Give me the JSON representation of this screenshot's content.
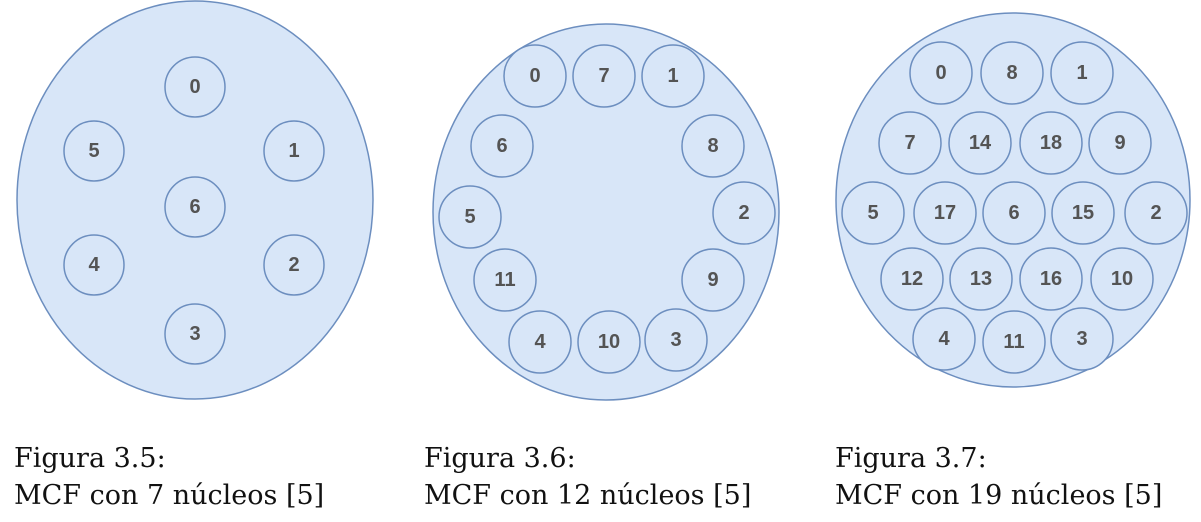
{
  "colors": {
    "fiber_fill": "#d8e6f8",
    "fiber_stroke": "#6c8ebf",
    "core_text": "#545454"
  },
  "figures": [
    {
      "caption_number": "Figura 3.5:",
      "caption_text": "MCF con 7 núcleos [5]",
      "core_labels": [
        "0",
        "5",
        "1",
        "6",
        "4",
        "2",
        "3"
      ]
    },
    {
      "caption_number": "Figura 3.6:",
      "caption_text": "MCF con 12 núcleos [5]",
      "core_labels": [
        "0",
        "7",
        "1",
        "6",
        "8",
        "5",
        "2",
        "11",
        "9",
        "4",
        "10",
        "3"
      ]
    },
    {
      "caption_number": "Figura 3.7:",
      "caption_text": "MCF con 19 núcleos [5]",
      "core_labels": [
        "0",
        "8",
        "1",
        "7",
        "14",
        "18",
        "9",
        "5",
        "17",
        "6",
        "15",
        "2",
        "12",
        "13",
        "16",
        "10",
        "4",
        "11",
        "3"
      ]
    }
  ]
}
